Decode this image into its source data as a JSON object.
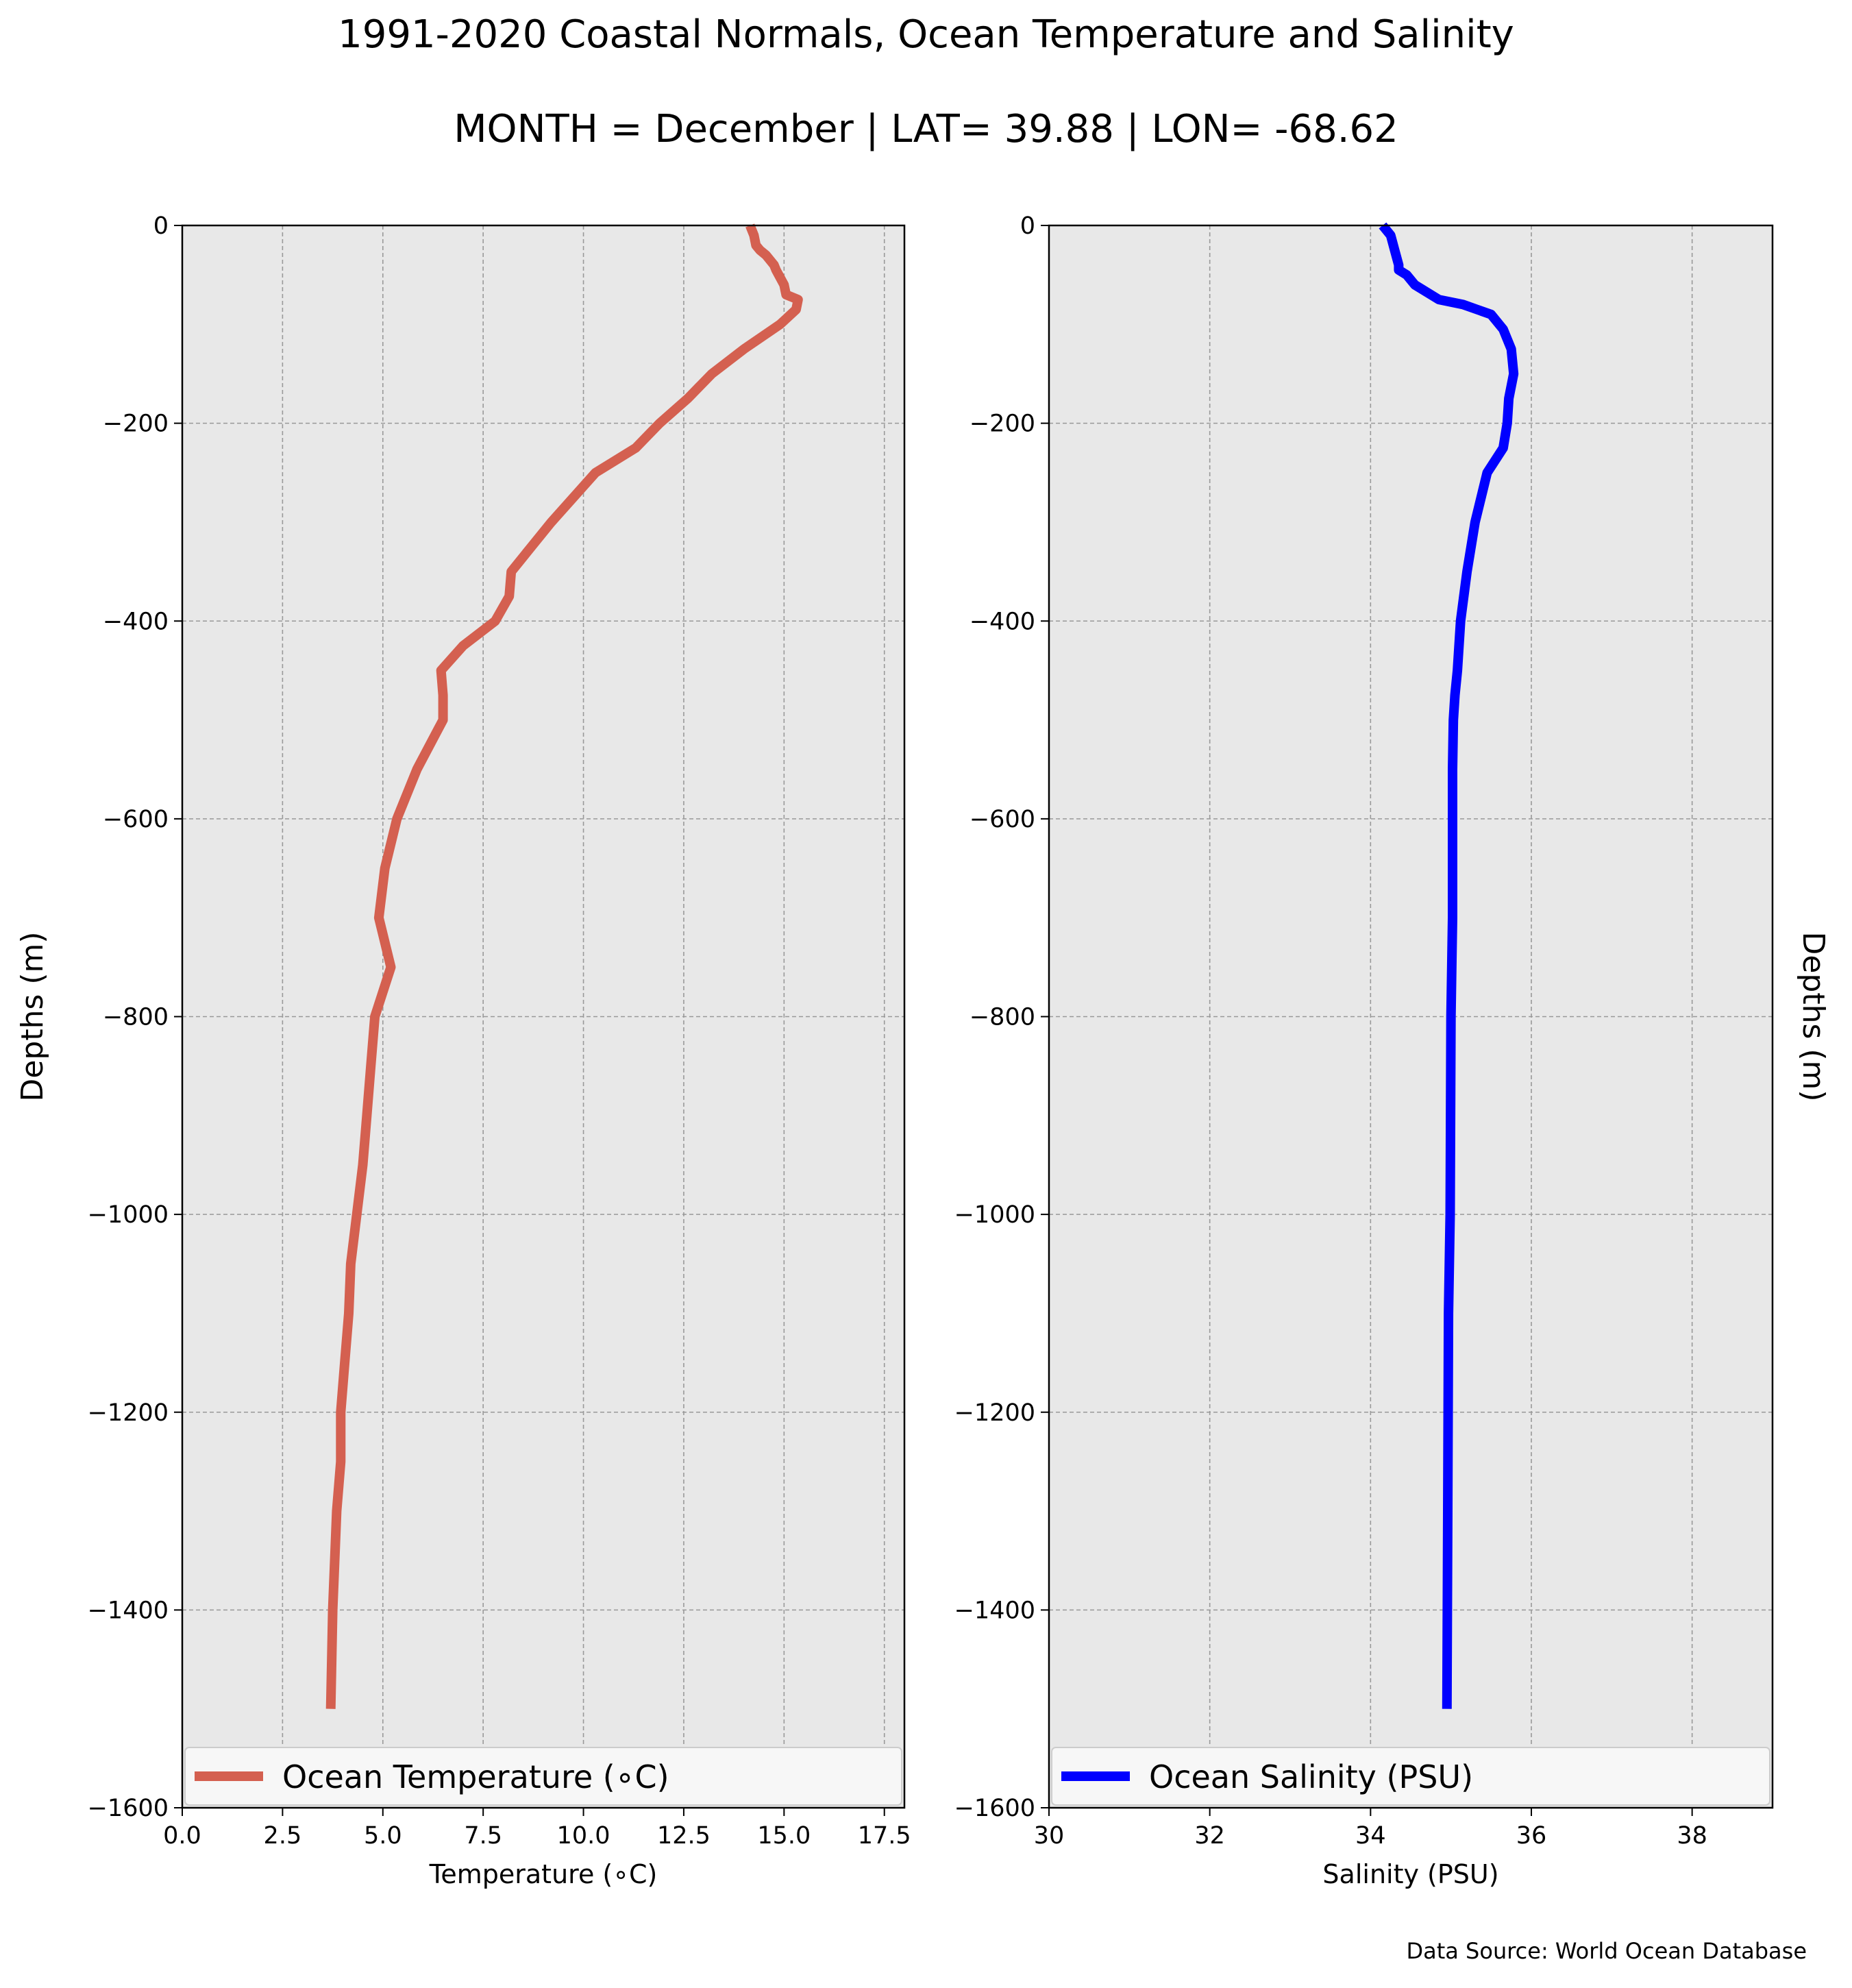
{
  "figure": {
    "title": "1991-2020 Coastal Normals, Ocean Temperature and Salinity",
    "subtitle": "MONTH = December | LAT= 39.88 | LON= -68.62",
    "source": "Data Source: World Ocean Database"
  },
  "colors": {
    "panel_bg": "#e8e8e8",
    "grid": "#999999",
    "temperature_line": "#d46050",
    "salinity_line": "#0000ff"
  },
  "chart_data": [
    {
      "type": "line",
      "xlabel": "Temperature (∘C)",
      "ylabel": "Depths (m)",
      "xlim": [
        0,
        18
      ],
      "ylim": [
        -1600,
        0
      ],
      "xticks": [
        "0.0",
        "2.5",
        "5.0",
        "7.5",
        "10.0",
        "12.5",
        "15.0",
        "17.5"
      ],
      "xtick_values": [
        0,
        2.5,
        5,
        7.5,
        10,
        12.5,
        15,
        17.5
      ],
      "yticks": [
        "0",
        "−200",
        "−400",
        "−600",
        "−800",
        "−1000",
        "−1200",
        "−1400",
        "−1600"
      ],
      "ytick_values": [
        0,
        -200,
        -400,
        -600,
        -800,
        -1000,
        -1200,
        -1400,
        -1600
      ],
      "grid": true,
      "legend": "lower-center",
      "series": [
        {
          "name": "Ocean Temperature (∘C)",
          "x": [
            14.15,
            14.25,
            14.3,
            14.4,
            14.55,
            14.75,
            14.8,
            15.0,
            15.05,
            15.35,
            15.3,
            14.9,
            14.0,
            13.2,
            12.6,
            11.9,
            11.3,
            10.3,
            9.2,
            8.7,
            8.2,
            8.15,
            7.8,
            7.0,
            6.45,
            6.5,
            6.5,
            5.85,
            5.35,
            5.05,
            4.9,
            5.2,
            4.8,
            4.7,
            4.6,
            4.5,
            4.35,
            4.2,
            4.15,
            4.05,
            3.95,
            3.95,
            3.85,
            3.75,
            3.7
          ],
          "y": [
            0,
            -10,
            -20,
            -25,
            -30,
            -40,
            -45,
            -60,
            -70,
            -75,
            -85,
            -100,
            -125,
            -150,
            -175,
            -200,
            -225,
            -250,
            -300,
            -325,
            -350,
            -375,
            -400,
            -425,
            -450,
            -475,
            -500,
            -550,
            -600,
            -650,
            -700,
            -750,
            -800,
            -850,
            -900,
            -950,
            -1000,
            -1050,
            -1100,
            -1150,
            -1200,
            -1250,
            -1300,
            -1400,
            -1500
          ]
        }
      ]
    },
    {
      "type": "line",
      "xlabel": "Salinity (PSU)",
      "ylabel": "Depths (m)",
      "xlim": [
        30,
        39
      ],
      "ylim": [
        -1600,
        0
      ],
      "xticks": [
        "30",
        "32",
        "34",
        "36",
        "38"
      ],
      "xtick_values": [
        30,
        32,
        34,
        36,
        38
      ],
      "yticks": [
        "0",
        "−200",
        "−400",
        "−600",
        "−800",
        "−1000",
        "−1200",
        "−1400",
        "−1600"
      ],
      "ytick_values": [
        0,
        -200,
        -400,
        -600,
        -800,
        -1000,
        -1200,
        -1400,
        -1600
      ],
      "grid": true,
      "legend": "lower-center",
      "series": [
        {
          "name": "Ocean Salinity (PSU)",
          "x": [
            34.15,
            34.25,
            34.3,
            34.35,
            34.35,
            34.45,
            34.55,
            34.85,
            35.15,
            35.5,
            35.65,
            35.75,
            35.78,
            35.72,
            35.7,
            35.65,
            35.45,
            35.3,
            35.2,
            35.12,
            35.08,
            35.05,
            35.03,
            35.02,
            35.02,
            35.02,
            35.0,
            34.99,
            34.97,
            34.96,
            34.95
          ],
          "y": [
            0,
            -10,
            -25,
            -40,
            -45,
            -50,
            -60,
            -75,
            -80,
            -90,
            -105,
            -125,
            -150,
            -175,
            -200,
            -225,
            -250,
            -300,
            -350,
            -400,
            -450,
            -475,
            -500,
            -550,
            -600,
            -700,
            -800,
            -1000,
            -1100,
            -1300,
            -1500
          ]
        }
      ]
    }
  ]
}
